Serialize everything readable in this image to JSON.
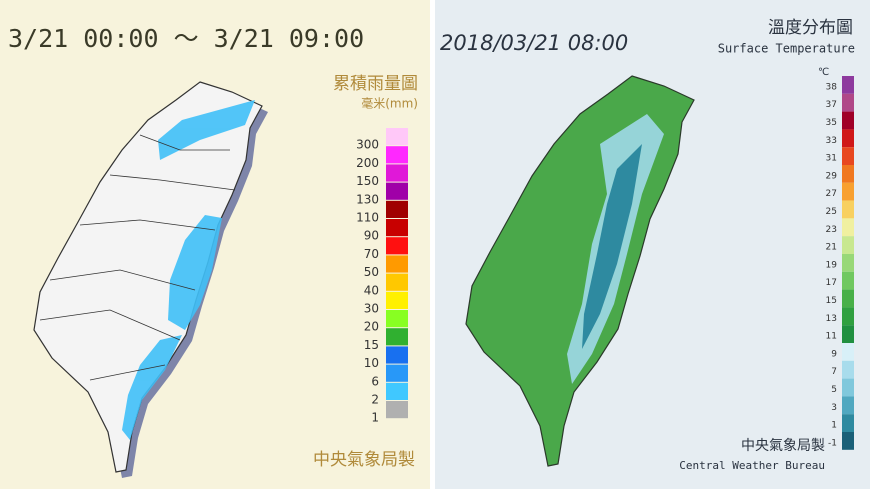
{
  "rain_map": {
    "time_range": "3/21 00:00 ～ 3/21 09:00",
    "title": "累積雨量圖",
    "unit": "毫米(mm)",
    "legend": [
      {
        "label": 300,
        "color": "#ffc8f8"
      },
      {
        "label": 200,
        "color": "#ff28ff"
      },
      {
        "label": 150,
        "color": "#e018d8"
      },
      {
        "label": 130,
        "color": "#a000a8"
      },
      {
        "label": 110,
        "color": "#a00000"
      },
      {
        "label": 90,
        "color": "#c80000"
      },
      {
        "label": 70,
        "color": "#ff1010"
      },
      {
        "label": 50,
        "color": "#ff9a00"
      },
      {
        "label": 40,
        "color": "#ffc800"
      },
      {
        "label": 30,
        "color": "#fff000"
      },
      {
        "label": 20,
        "color": "#88ff22"
      },
      {
        "label": 15,
        "color": "#30b030"
      },
      {
        "label": 10,
        "color": "#1870f0"
      },
      {
        "label": 6,
        "color": "#2898f8"
      },
      {
        "label": 2,
        "color": "#40c8ff"
      },
      {
        "label": 1,
        "color": "#b0b0b0"
      }
    ],
    "footer": "中央氣象局製"
  },
  "temperature_map": {
    "timestamp": "2018/03/21 08:00",
    "title": "溫度分布圖",
    "subtitle": "Surface Temperature",
    "unit": "℃",
    "legend": [
      {
        "label": 38,
        "color": "#8e3a9e"
      },
      {
        "label": 37,
        "color": "#b04888"
      },
      {
        "label": 35,
        "color": "#a00028"
      },
      {
        "label": 33,
        "color": "#d01818"
      },
      {
        "label": 31,
        "color": "#e84820"
      },
      {
        "label": 29,
        "color": "#f07820"
      },
      {
        "label": 27,
        "color": "#f8a030"
      },
      {
        "label": 25,
        "color": "#f8d060"
      },
      {
        "label": 23,
        "color": "#f0f0a0"
      },
      {
        "label": 21,
        "color": "#c8e890"
      },
      {
        "label": 19,
        "color": "#98d878"
      },
      {
        "label": 17,
        "color": "#70c860"
      },
      {
        "label": 15,
        "color": "#48b048"
      },
      {
        "label": 13,
        "color": "#30a040"
      },
      {
        "label": 11,
        "color": "#209040"
      },
      {
        "label": 9,
        "color": "#d8f0f8"
      },
      {
        "label": 7,
        "color": "#a8dcec"
      },
      {
        "label": 5,
        "color": "#80c8dc"
      },
      {
        "label": 3,
        "color": "#50a8c0"
      },
      {
        "label": 1,
        "color": "#2e8aa0"
      },
      {
        "label": -1,
        "color": "#1a6078"
      }
    ],
    "footer": "中央氣象局製",
    "footer_en": "Central Weather Bureau"
  }
}
